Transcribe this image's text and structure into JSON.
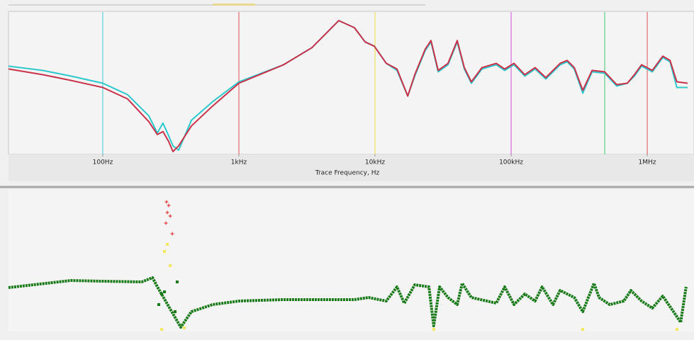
{
  "chart_data": [
    {
      "type": "line",
      "xscale": "log",
      "xlim": [
        20.3,
        1980000
      ],
      "ylim": [
        0,
        100
      ],
      "xticks": [
        {
          "value": 100,
          "label": "100Hz"
        },
        {
          "value": 1000,
          "label": "1kHz"
        },
        {
          "value": 10000,
          "label": "10kHz"
        },
        {
          "value": 100000,
          "label": "100kHz"
        },
        {
          "value": 1000000,
          "label": "1MHz"
        }
      ],
      "xlabel": "Trace Frequency, Hz",
      "markers": [
        {
          "x": 100,
          "color": "#3cc8d8"
        },
        {
          "x": 1000,
          "color": "#e05050"
        },
        {
          "x": 10000,
          "color": "#f0e040"
        },
        {
          "x": 100000,
          "color": "#d050d8"
        },
        {
          "x": 487000,
          "color": "#40c870"
        },
        {
          "x": 1000000,
          "color": "#e05050"
        }
      ],
      "x": [
        20.3,
        36.1,
        58.3,
        100,
        152,
        218,
        252,
        277,
        305,
        328,
        361,
        448,
        641,
        1000,
        2130,
        3440,
        5420,
        7060,
        8450,
        9880,
        12100,
        14500,
        17400,
        19600,
        23400,
        25800,
        29100,
        34400,
        40200,
        45300,
        51000,
        61100,
        77800,
        89800,
        105000,
        126000,
        150000,
        180000,
        229000,
        258000,
        291000,
        336000,
        393000,
        487000,
        597000,
        714000,
        805000,
        908000,
        1090000,
        1300000,
        1470000,
        1650000,
        1980000
      ],
      "series": [
        {
          "color": "#2ec8cc",
          "values": [
            62,
            59,
            55,
            50,
            42,
            27,
            15,
            22,
            13,
            6,
            3,
            24,
            37,
            51,
            63,
            75,
            94,
            89,
            79,
            76,
            64,
            59,
            41,
            55,
            73,
            79,
            58,
            63,
            79,
            60,
            50,
            60,
            63,
            59,
            63,
            55,
            60,
            53,
            63,
            65,
            60,
            43,
            58,
            57,
            48,
            50,
            55,
            62,
            58,
            68,
            65,
            47,
            47
          ]
        },
        {
          "color": "#c8324a",
          "values": [
            60,
            56,
            52,
            47,
            39,
            23,
            14,
            16,
            9,
            2,
            6,
            20,
            34,
            50,
            63,
            75,
            94,
            89,
            79,
            76,
            64,
            60,
            41,
            56,
            74,
            80,
            59,
            64,
            80,
            61,
            51,
            61,
            64,
            60,
            64,
            56,
            61,
            54,
            64,
            66,
            61,
            45,
            59,
            58,
            49,
            50,
            56,
            63,
            59,
            69,
            66,
            51,
            50
          ]
        }
      ]
    },
    {
      "type": "scatter",
      "xscale": "log",
      "xlim": [
        20.3,
        1980000
      ],
      "ylim": [
        0,
        100
      ],
      "series": [
        {
          "color": "#1a7a1a",
          "marker": "line",
          "x": [
            20.3,
            58.3,
            100,
            193,
            232,
            252,
            374,
            448,
            641,
            1000,
            2130,
            7060,
            8970,
            12100,
            14500,
            16400,
            19600,
            24900,
            27000,
            29800,
            34400,
            40200,
            43700,
            51000,
            77800,
            89800,
            105000,
            126000,
            150000,
            169000,
            203000,
            229000,
            291000,
            336000,
            406000,
            443000,
            530000,
            673000,
            759000,
            908000,
            1090000,
            1300000,
            1560000,
            1760000,
            1930000
          ],
          "values": [
            31,
            36,
            35.5,
            35,
            38,
            31.5,
            3,
            14,
            19,
            21.5,
            22.5,
            22.5,
            24,
            21.5,
            31.5,
            20,
            33,
            31.5,
            4,
            31.5,
            24,
            19,
            34,
            24,
            20,
            31.5,
            19,
            26.5,
            21.5,
            31.5,
            19,
            29,
            24,
            14,
            34,
            24,
            19,
            21.5,
            29,
            21.5,
            16.5,
            25,
            14,
            6.5,
            31.5
          ]
        },
        {
          "color": "#1a7a1a",
          "marker": "dot",
          "x": [
            258,
            271,
            284,
            340,
            352
          ],
          "values": [
            19,
            26.5,
            28,
            14,
            35
          ]
        },
        {
          "color": "#f0e860",
          "marker": "dot",
          "x": [
            271,
            284,
            298,
            313,
            397,
            27000,
            336000,
            1650000
          ],
          "values": [
            1.5,
            56.5,
            61.5,
            46.5,
            2.5,
            1.5,
            1.5,
            1.5
          ]
        },
        {
          "color": "#e02020",
          "marker": "plus",
          "x": [
            291,
            294,
            298,
            305,
            313,
            324
          ],
          "values": [
            76.5,
            91.5,
            84,
            89,
            81.5,
            69
          ]
        }
      ]
    }
  ]
}
